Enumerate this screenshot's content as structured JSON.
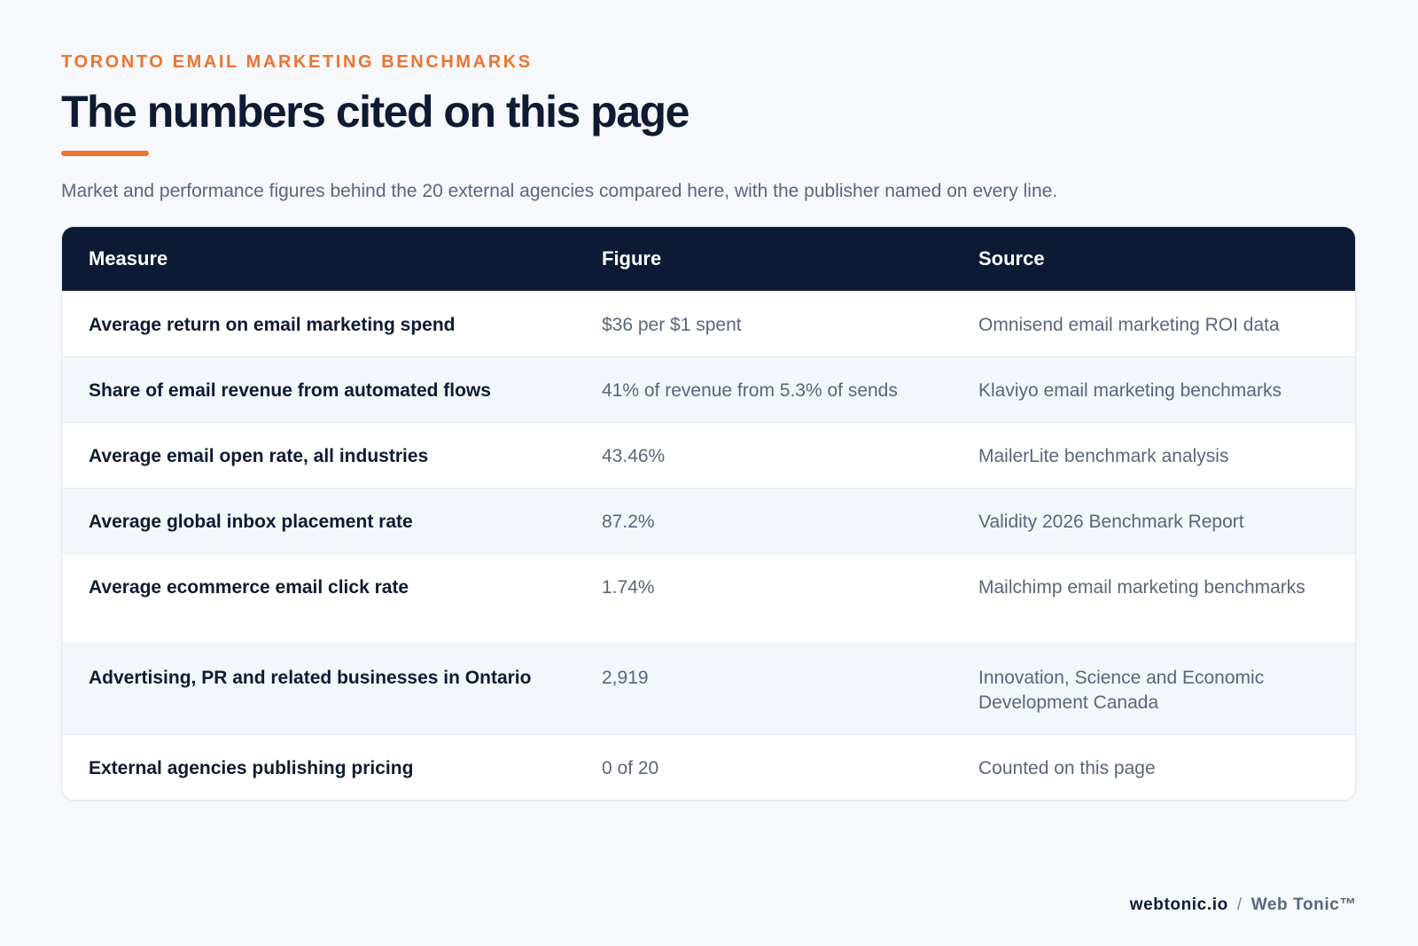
{
  "header": {
    "eyebrow": "TORONTO EMAIL MARKETING BENCHMARKS",
    "title": "The numbers cited on this page",
    "subtitle": "Market and performance figures behind the 20 external agencies compared here, with the publisher named on every line."
  },
  "table": {
    "columns": [
      "Measure",
      "Figure",
      "Source"
    ],
    "rows": [
      {
        "measure": "Average return on email marketing spend",
        "figure": "$36 per $1 spent",
        "source": "Omnisend email marketing ROI data"
      },
      {
        "measure": "Share of email revenue from automated flows",
        "figure": "41% of revenue from 5.3% of sends",
        "source": "Klaviyo email marketing benchmarks"
      },
      {
        "measure": "Average email open rate, all industries",
        "figure": "43.46%",
        "source": "MailerLite benchmark analysis"
      },
      {
        "measure": "Average global inbox placement rate",
        "figure": "87.2%",
        "source": "Validity 2026 Benchmark Report"
      },
      {
        "measure": "Average ecommerce email click rate",
        "figure": "1.74%",
        "source": "Mailchimp email marketing benchmarks"
      },
      {
        "measure": "Advertising, PR and related businesses in Ontario",
        "figure": "2,919",
        "source": "Innovation, Science and Economic Development Canada"
      },
      {
        "measure": "External agencies publishing pricing",
        "figure": "0 of 20",
        "source": "Counted on this page"
      }
    ]
  },
  "footer": {
    "domain": "webtonic.io",
    "separator": "/",
    "brand": "Web Tonic™"
  },
  "colors": {
    "accent": "#ee7330",
    "header_bg": "#0c1a35",
    "text_dark": "#0f1b33",
    "text_muted": "#5a667c",
    "page_bg": "#f6f8fb"
  }
}
